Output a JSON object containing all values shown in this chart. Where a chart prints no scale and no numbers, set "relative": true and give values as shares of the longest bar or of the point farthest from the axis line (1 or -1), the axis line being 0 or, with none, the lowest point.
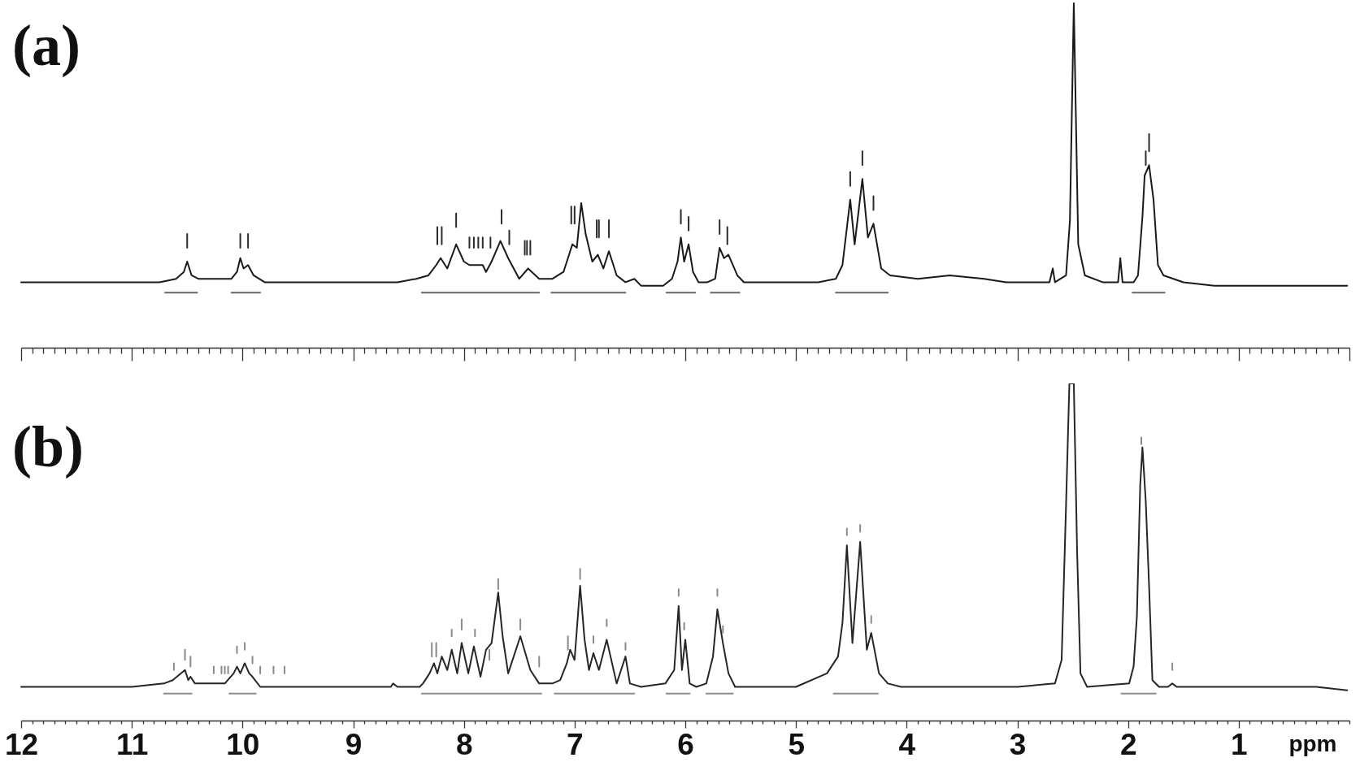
{
  "chart_data": [
    {
      "type": "line",
      "title": "(a)",
      "relative": true,
      "xlim": [
        12,
        0
      ],
      "tick_labels": false,
      "xticks": [
        12,
        {
          "value": 11.9,
          "label": null
        },
        {
          "value": 11.8,
          "label": null
        },
        {
          "value": 11.7,
          "label": null
        },
        {
          "value": 11.6,
          "label": null
        },
        {
          "value": 11.5,
          "label": null
        },
        {
          "value": 11.4,
          "label": null
        },
        {
          "value": 11.3,
          "label": null
        },
        {
          "value": 11.2,
          "label": null
        },
        {
          "value": 11.1,
          "label": null
        },
        11,
        {
          "value": 10.9,
          "label": null
        },
        {
          "value": 10.8,
          "label": null
        },
        {
          "value": 10.7,
          "label": null
        },
        {
          "value": 10.6,
          "label": null
        },
        {
          "value": 10.5,
          "label": null
        },
        {
          "value": 10.4,
          "label": null
        },
        {
          "value": 10.3,
          "label": null
        },
        {
          "value": 10.2,
          "label": null
        },
        {
          "value": 10.1,
          "label": null
        },
        10,
        {
          "value": 9.9,
          "label": null
        },
        {
          "value": 9.8,
          "label": null
        },
        {
          "value": 9.7,
          "label": null
        },
        {
          "value": 9.6,
          "label": null
        },
        {
          "value": 9.5,
          "label": null
        },
        {
          "value": 9.4,
          "label": null
        },
        {
          "value": 9.3,
          "label": null
        },
        {
          "value": 9.2,
          "label": null
        },
        {
          "value": 9.1,
          "label": null
        },
        9,
        {
          "value": 8.9,
          "label": null
        },
        {
          "value": 8.8,
          "label": null
        },
        {
          "value": 8.7,
          "label": null
        },
        {
          "value": 8.6,
          "label": null
        },
        {
          "value": 8.5,
          "label": null
        },
        {
          "value": 8.4,
          "label": null
        },
        {
          "value": 8.3,
          "label": null
        },
        {
          "value": 8.2,
          "label": null
        },
        {
          "value": 8.1,
          "label": null
        },
        8,
        {
          "value": 7.9,
          "label": null
        },
        {
          "value": 7.8,
          "label": null
        },
        {
          "value": 7.7,
          "label": null
        },
        {
          "value": 7.6,
          "label": null
        },
        {
          "value": 7.5,
          "label": null
        },
        {
          "value": 7.4,
          "label": null
        },
        {
          "value": 7.3,
          "label": null
        },
        {
          "value": 7.2,
          "label": null
        },
        {
          "value": 7.1,
          "label": null
        },
        7,
        {
          "value": 6.9,
          "label": null
        },
        {
          "value": 6.8,
          "label": null
        },
        {
          "value": 6.7,
          "label": null
        },
        {
          "value": 6.6,
          "label": null
        },
        {
          "value": 6.5,
          "label": null
        },
        {
          "value": 6.4,
          "label": null
        },
        {
          "value": 6.3,
          "label": null
        },
        {
          "value": 6.2,
          "label": null
        },
        {
          "value": 6.1,
          "label": null
        },
        6,
        {
          "value": 5.9,
          "label": null
        },
        {
          "value": 5.8,
          "label": null
        },
        {
          "value": 5.7,
          "label": null
        },
        {
          "value": 5.6,
          "label": null
        },
        {
          "value": 5.5,
          "label": null
        },
        {
          "value": 5.4,
          "label": null
        },
        {
          "value": 5.3,
          "label": null
        },
        {
          "value": 5.2,
          "label": null
        },
        {
          "value": 5.1,
          "label": null
        },
        5,
        {
          "value": 4.9,
          "label": null
        },
        {
          "value": 4.8,
          "label": null
        },
        {
          "value": 4.7,
          "label": null
        },
        {
          "value": 4.6,
          "label": null
        },
        {
          "value": 4.5,
          "label": null
        },
        {
          "value": 4.4,
          "label": null
        },
        {
          "value": 4.3,
          "label": null
        },
        {
          "value": 4.2,
          "label": null
        },
        {
          "value": 4.1,
          "label": null
        },
        4,
        {
          "value": 3.9,
          "label": null
        },
        {
          "value": 3.8,
          "label": null
        },
        {
          "value": 3.7,
          "label": null
        },
        {
          "value": 3.6,
          "label": null
        },
        {
          "value": 3.5,
          "label": null
        },
        {
          "value": 3.4,
          "label": null
        },
        {
          "value": 3.3,
          "label": null
        },
        {
          "value": 3.2,
          "label": null
        },
        {
          "value": 3.1,
          "label": null
        },
        3,
        {
          "value": 2.9,
          "label": null
        },
        {
          "value": 2.8,
          "label": null
        },
        {
          "value": 2.7,
          "label": null
        },
        {
          "value": 2.6,
          "label": null
        },
        {
          "value": 2.5,
          "label": null
        },
        {
          "value": 2.4,
          "label": null
        },
        {
          "value": 2.3,
          "label": null
        },
        {
          "value": 2.2,
          "label": null
        },
        {
          "value": 2.1,
          "label": null
        },
        2,
        {
          "value": 1.9,
          "label": null
        },
        {
          "value": 1.8,
          "label": null
        },
        {
          "value": 1.7,
          "label": null
        },
        {
          "value": 1.6,
          "label": null
        },
        {
          "value": 1.5,
          "label": null
        },
        {
          "value": 1.4,
          "label": null
        },
        {
          "value": 1.3,
          "label": null
        },
        {
          "value": 1.2,
          "label": null
        },
        {
          "value": 1.1,
          "label": null
        },
        1,
        {
          "value": 0.9,
          "label": null
        },
        {
          "value": 0.8,
          "label": null
        },
        {
          "value": 0.7,
          "label": null
        },
        {
          "value": 0.6,
          "label": null
        },
        {
          "value": 0.5,
          "label": null
        },
        {
          "value": 0.4,
          "label": null
        },
        {
          "value": 0.3,
          "label": null
        },
        {
          "value": 0.2,
          "label": null
        },
        {
          "value": 0.1,
          "label": null
        },
        0
      ],
      "series": [
        {
          "color": "#1a1a1a",
          "x": [
            12,
            11,
            10.75,
            10.6,
            10.53,
            10.5,
            10.46,
            10.4,
            10.1,
            10.05,
            10.02,
            9.99,
            9.95,
            9.9,
            9.8,
            9,
            8.6,
            8.43,
            8.32,
            8.25,
            8.21,
            8.15,
            8.07,
            8,
            7.95,
            7.88,
            7.83,
            7.8,
            7.75,
            7.67,
            7.6,
            7.5,
            7.42,
            7.32,
            7.2,
            7.1,
            7.02,
            6.98,
            6.94,
            6.9,
            6.84,
            6.79,
            6.74,
            6.69,
            6.62,
            6.54,
            6.46,
            6.4,
            6.2,
            6.12,
            6.07,
            6.04,
            6.01,
            5.97,
            5.93,
            5.88,
            5.8,
            5.73,
            5.69,
            5.65,
            5.61,
            5.53,
            5.47,
            4.8,
            4.64,
            4.58,
            4.51,
            4.47,
            4.4,
            4.35,
            4.3,
            4.23,
            4.15,
            3.9,
            3.61,
            3.3,
            3.1,
            2.71,
            2.68,
            2.66,
            2.56,
            2.525,
            2.49,
            2.45,
            2.39,
            2.23,
            2.09,
            2.07,
            2.05,
            1.95,
            1.91,
            1.87,
            1.85,
            1.81,
            1.77,
            1.73,
            1.68,
            1.5,
            1.22,
            0.6,
            0.02
          ],
          "values": [
            0.19,
            0.19,
            0.19,
            0.2,
            0.22,
            0.25,
            0.21,
            0.2,
            0.2,
            0.22,
            0.26,
            0.23,
            0.24,
            0.21,
            0.19,
            0.19,
            0.19,
            0.2,
            0.21,
            0.24,
            0.26,
            0.23,
            0.3,
            0.25,
            0.24,
            0.24,
            0.24,
            0.22,
            0.25,
            0.31,
            0.26,
            0.2,
            0.23,
            0.2,
            0.2,
            0.22,
            0.3,
            0.29,
            0.42,
            0.33,
            0.25,
            0.27,
            0.23,
            0.28,
            0.21,
            0.19,
            0.2,
            0.18,
            0.18,
            0.2,
            0.25,
            0.32,
            0.25,
            0.3,
            0.22,
            0.19,
            0.19,
            0.2,
            0.29,
            0.26,
            0.27,
            0.21,
            0.19,
            0.19,
            0.2,
            0.24,
            0.43,
            0.3,
            0.49,
            0.32,
            0.36,
            0.23,
            0.21,
            0.2,
            0.21,
            0.2,
            0.19,
            0.19,
            0.23,
            0.19,
            0.21,
            0.37,
            1,
            0.3,
            0.21,
            0.19,
            0.19,
            0.26,
            0.19,
            0.19,
            0.21,
            0.38,
            0.5,
            0.53,
            0.43,
            0.24,
            0.21,
            0.19,
            0.18,
            0.18,
            0.18
          ]
        },
        {
          "color": "#666666",
          "x": [
            10.7,
            10.41,
            null,
            10.1,
            9.84,
            null,
            8.38,
            7.32,
            null,
            7.21,
            6.54,
            null,
            6.17,
            5.91,
            null,
            5.77,
            5.51,
            null,
            4.64,
            4.17,
            null,
            1.96,
            1.67
          ],
          "values": [
            0.16,
            0.16,
            null,
            0.16,
            0.16,
            null,
            0.16,
            0.16,
            null,
            0.16,
            0.16,
            null,
            0.16,
            0.16,
            null,
            0.16,
            0.16,
            null,
            0.16,
            0.16,
            null,
            0.16,
            0.16
          ]
        },
        {
          "color": "#2b2b2b",
          "x": [
            10.5,
            10.5,
            null,
            10.02,
            10.02,
            null,
            9.95,
            9.95,
            null,
            8.24,
            8.24,
            null,
            8.2,
            8.2,
            null,
            8.07,
            8.07,
            null,
            7.95,
            7.95,
            null,
            7.91,
            7.91,
            null,
            7.87,
            7.87,
            null,
            7.83,
            7.83,
            null,
            7.76,
            7.76,
            null,
            7.66,
            7.66,
            null,
            7.59,
            7.59,
            null,
            7.45,
            7.45,
            null,
            7.43,
            7.43,
            null,
            7.4,
            7.4,
            null,
            7.03,
            7.03,
            null,
            7,
            7,
            null,
            6.8,
            6.8,
            null,
            6.78,
            6.78,
            null,
            6.69,
            6.69,
            null,
            6.04,
            6.04,
            null,
            5.97,
            5.97,
            null,
            5.69,
            5.69,
            null,
            5.62,
            5.62,
            null,
            4.51,
            4.51,
            null,
            4.4,
            4.4,
            null,
            4.3,
            4.3,
            null,
            1.84,
            1.84,
            null,
            1.81,
            1.81
          ],
          "values": [
            0.29,
            0.33,
            null,
            0.29,
            0.33,
            null,
            0.29,
            0.33,
            null,
            0.3,
            0.35,
            null,
            0.3,
            0.35,
            null,
            0.35,
            0.39,
            null,
            0.29,
            0.32,
            null,
            0.29,
            0.32,
            null,
            0.29,
            0.32,
            null,
            0.29,
            0.32,
            null,
            0.29,
            0.32,
            null,
            0.36,
            0.4,
            null,
            0.3,
            0.34,
            null,
            0.27,
            0.31,
            null,
            0.27,
            0.31,
            null,
            0.27,
            0.31,
            null,
            0.36,
            0.41,
            null,
            0.36,
            0.41,
            null,
            0.32,
            0.37,
            null,
            0.32,
            0.37,
            null,
            0.32,
            0.37,
            null,
            0.36,
            0.4,
            null,
            0.34,
            0.38,
            null,
            0.33,
            0.37,
            null,
            0.3,
            0.35,
            null,
            0.47,
            0.51,
            null,
            0.53,
            0.57,
            null,
            0.4,
            0.44,
            null,
            0.53,
            0.57,
            null,
            0.57,
            0.62
          ]
        }
      ]
    },
    {
      "type": "line",
      "title": "(b)",
      "relative": true,
      "xlim": [
        12,
        0
      ],
      "xlabel": "ppm",
      "xticks": [
        12,
        {
          "value": 11.9,
          "label": null
        },
        {
          "value": 11.8,
          "label": null
        },
        {
          "value": 11.7,
          "label": null
        },
        {
          "value": 11.6,
          "label": null
        },
        {
          "value": 11.5,
          "label": null
        },
        {
          "value": 11.4,
          "label": null
        },
        {
          "value": 11.3,
          "label": null
        },
        {
          "value": 11.2,
          "label": null
        },
        {
          "value": 11.1,
          "label": null
        },
        11,
        {
          "value": 10.9,
          "label": null
        },
        {
          "value": 10.8,
          "label": null
        },
        {
          "value": 10.7,
          "label": null
        },
        {
          "value": 10.6,
          "label": null
        },
        {
          "value": 10.5,
          "label": null
        },
        {
          "value": 10.4,
          "label": null
        },
        {
          "value": 10.3,
          "label": null
        },
        {
          "value": 10.2,
          "label": null
        },
        {
          "value": 10.1,
          "label": null
        },
        10,
        {
          "value": 9.9,
          "label": null
        },
        {
          "value": 9.8,
          "label": null
        },
        {
          "value": 9.7,
          "label": null
        },
        {
          "value": 9.6,
          "label": null
        },
        {
          "value": 9.5,
          "label": null
        },
        {
          "value": 9.4,
          "label": null
        },
        {
          "value": 9.3,
          "label": null
        },
        {
          "value": 9.2,
          "label": null
        },
        {
          "value": 9.1,
          "label": null
        },
        9,
        {
          "value": 8.9,
          "label": null
        },
        {
          "value": 8.8,
          "label": null
        },
        {
          "value": 8.7,
          "label": null
        },
        {
          "value": 8.6,
          "label": null
        },
        {
          "value": 8.5,
          "label": null
        },
        {
          "value": 8.4,
          "label": null
        },
        {
          "value": 8.3,
          "label": null
        },
        {
          "value": 8.2,
          "label": null
        },
        {
          "value": 8.1,
          "label": null
        },
        8,
        {
          "value": 7.9,
          "label": null
        },
        {
          "value": 7.8,
          "label": null
        },
        {
          "value": 7.7,
          "label": null
        },
        {
          "value": 7.6,
          "label": null
        },
        {
          "value": 7.5,
          "label": null
        },
        {
          "value": 7.4,
          "label": null
        },
        {
          "value": 7.3,
          "label": null
        },
        {
          "value": 7.2,
          "label": null
        },
        {
          "value": 7.1,
          "label": null
        },
        7,
        {
          "value": 6.9,
          "label": null
        },
        {
          "value": 6.8,
          "label": null
        },
        {
          "value": 6.7,
          "label": null
        },
        {
          "value": 6.6,
          "label": null
        },
        {
          "value": 6.5,
          "label": null
        },
        {
          "value": 6.4,
          "label": null
        },
        {
          "value": 6.3,
          "label": null
        },
        {
          "value": 6.2,
          "label": null
        },
        {
          "value": 6.1,
          "label": null
        },
        6,
        {
          "value": 5.9,
          "label": null
        },
        {
          "value": 5.8,
          "label": null
        },
        {
          "value": 5.7,
          "label": null
        },
        {
          "value": 5.6,
          "label": null
        },
        {
          "value": 5.5,
          "label": null
        },
        {
          "value": 5.4,
          "label": null
        },
        {
          "value": 5.3,
          "label": null
        },
        {
          "value": 5.2,
          "label": null
        },
        {
          "value": 5.1,
          "label": null
        },
        5,
        {
          "value": 4.9,
          "label": null
        },
        {
          "value": 4.8,
          "label": null
        },
        {
          "value": 4.7,
          "label": null
        },
        {
          "value": 4.6,
          "label": null
        },
        {
          "value": 4.5,
          "label": null
        },
        {
          "value": 4.4,
          "label": null
        },
        {
          "value": 4.3,
          "label": null
        },
        {
          "value": 4.2,
          "label": null
        },
        {
          "value": 4.1,
          "label": null
        },
        4,
        {
          "value": 3.9,
          "label": null
        },
        {
          "value": 3.8,
          "label": null
        },
        {
          "value": 3.7,
          "label": null
        },
        {
          "value": 3.6,
          "label": null
        },
        {
          "value": 3.5,
          "label": null
        },
        {
          "value": 3.4,
          "label": null
        },
        {
          "value": 3.3,
          "label": null
        },
        {
          "value": 3.2,
          "label": null
        },
        {
          "value": 3.1,
          "label": null
        },
        3,
        {
          "value": 2.9,
          "label": null
        },
        {
          "value": 2.8,
          "label": null
        },
        {
          "value": 2.7,
          "label": null
        },
        {
          "value": 2.6,
          "label": null
        },
        {
          "value": 2.5,
          "label": null
        },
        {
          "value": 2.4,
          "label": null
        },
        {
          "value": 2.3,
          "label": null
        },
        {
          "value": 2.2,
          "label": null
        },
        {
          "value": 2.1,
          "label": null
        },
        2,
        {
          "value": 1.9,
          "label": null
        },
        {
          "value": 1.8,
          "label": null
        },
        {
          "value": 1.7,
          "label": null
        },
        {
          "value": 1.6,
          "label": null
        },
        {
          "value": 1.5,
          "label": null
        },
        {
          "value": 1.4,
          "label": null
        },
        {
          "value": 1.3,
          "label": null
        },
        {
          "value": 1.2,
          "label": null
        },
        {
          "value": 1.1,
          "label": null
        },
        1,
        {
          "value": 0.9,
          "label": null
        },
        {
          "value": 0.8,
          "label": null
        },
        {
          "value": 0.7,
          "label": null
        },
        {
          "value": 0.6,
          "label": null
        },
        {
          "value": 0.5,
          "label": null
        },
        {
          "value": 0.4,
          "label": null
        },
        {
          "value": 0.3,
          "label": null
        },
        {
          "value": 0.2,
          "label": null
        },
        {
          "value": 0.1,
          "label": null
        },
        {
          "value": 0,
          "label": null
        }
      ],
      "series": [
        {
          "color": "#262626",
          "x": [
            12,
            11,
            10.71,
            10.63,
            10.52,
            10.49,
            10.47,
            10.43,
            10.2,
            10.16,
            10.08,
            10.05,
            10.02,
            9.98,
            9.94,
            9.91,
            9.84,
            9,
            8.66,
            8.64,
            8.6,
            8.4,
            8.37,
            8.31,
            8.27,
            8.24,
            8.2,
            8.15,
            8.11,
            8.06,
            8.02,
            7.96,
            7.91,
            7.85,
            7.8,
            7.75,
            7.69,
            7.65,
            7.6,
            7.49,
            7.4,
            7.32,
            7.2,
            7.13,
            7.07,
            7.04,
            7,
            6.95,
            6.91,
            6.87,
            6.83,
            6.78,
            6.71,
            6.62,
            6.54,
            6.5,
            6.4,
            6.18,
            6.1,
            6.06,
            6.03,
            6,
            5.96,
            5.9,
            5.81,
            5.75,
            5.71,
            5.66,
            5.61,
            5.55,
            5,
            4.72,
            4.62,
            4.58,
            4.54,
            4.49,
            4.42,
            4.36,
            4.32,
            4.25,
            4.17,
            4.05,
            3,
            2.66,
            2.6,
            2.56,
            2.53,
            2.49,
            2.46,
            2.43,
            2.37,
            1.99,
            1.95,
            1.92,
            1.89,
            1.87,
            1.84,
            1.81,
            1.78,
            1.72,
            1.64,
            1.6,
            1.56,
            0.3,
            0.02
          ],
          "values": [
            0.1,
            0.1,
            0.11,
            0.12,
            0.15,
            0.12,
            0.13,
            0.11,
            0.11,
            0.11,
            0.14,
            0.16,
            0.14,
            0.17,
            0.14,
            0.13,
            0.1,
            0.1,
            0.1,
            0.11,
            0.1,
            0.1,
            0.11,
            0.14,
            0.17,
            0.14,
            0.19,
            0.15,
            0.21,
            0.14,
            0.23,
            0.14,
            0.22,
            0.13,
            0.21,
            0.23,
            0.38,
            0.25,
            0.14,
            0.25,
            0.15,
            0.11,
            0.11,
            0.12,
            0.17,
            0.21,
            0.18,
            0.4,
            0.24,
            0.15,
            0.2,
            0.15,
            0.24,
            0.11,
            0.19,
            0.11,
            0.1,
            0.11,
            0.15,
            0.34,
            0.15,
            0.24,
            0.11,
            0.1,
            0.11,
            0.19,
            0.33,
            0.23,
            0.14,
            0.1,
            0.1,
            0.14,
            0.19,
            0.29,
            0.52,
            0.23,
            0.53,
            0.21,
            0.26,
            0.14,
            0.11,
            0.1,
            0.1,
            0.11,
            0.18,
            0.64,
            1,
            1,
            0.5,
            0.14,
            0.1,
            0.11,
            0.16,
            0.31,
            0.7,
            0.81,
            0.65,
            0.4,
            0.12,
            0.1,
            0.1,
            0.11,
            0.1,
            0.1,
            0.09
          ]
        },
        {
          "color": "#8a8a8a",
          "x": [
            10.71,
            10.46,
            null,
            10.12,
            9.88,
            null,
            8.38,
            7.3,
            null,
            7.18,
            6.46,
            null,
            6.17,
            5.96,
            null,
            5.81,
            5.57,
            null,
            4.66,
            4.26,
            null,
            2.06,
            1.75
          ],
          "values": [
            0.08,
            0.08,
            null,
            0.08,
            0.08,
            null,
            0.08,
            0.08,
            null,
            0.08,
            0.08,
            null,
            0.08,
            0.08,
            null,
            0.08,
            0.08,
            null,
            0.08,
            0.08,
            null,
            0.08,
            0.08
          ]
        },
        {
          "color": "#8a8a8a",
          "x": [
            10.62,
            10.62,
            null,
            10.52,
            10.52,
            null,
            10.47,
            10.47,
            null,
            10.26,
            10.26,
            null,
            10.19,
            10.19,
            null,
            10.16,
            10.16,
            null,
            10.13,
            10.13,
            null,
            10.05,
            10.05,
            null,
            9.98,
            9.98,
            null,
            9.91,
            9.91,
            null,
            9.84,
            9.84,
            null,
            9.72,
            9.72,
            null,
            9.62,
            9.62,
            null,
            8.29,
            8.29,
            null,
            8.25,
            8.25,
            null,
            8.11,
            8.11,
            null,
            8.02,
            8.02,
            null,
            7.9,
            7.9,
            null,
            7.77,
            7.77,
            null,
            7.69,
            7.69,
            null,
            7.49,
            7.49,
            null,
            7.32,
            7.32,
            null,
            7.06,
            7.06,
            null,
            6.95,
            6.95,
            null,
            6.83,
            6.83,
            null,
            6.71,
            6.71,
            null,
            6.54,
            6.54,
            null,
            6.06,
            6.06,
            null,
            6.01,
            6.01,
            null,
            5.71,
            5.71,
            null,
            5.66,
            5.66,
            null,
            4.54,
            4.54,
            null,
            4.42,
            4.42,
            null,
            4.32,
            4.32,
            null,
            1.88,
            1.88,
            null,
            1.6,
            1.6
          ],
          "values": [
            0.15,
            0.17,
            null,
            0.18,
            0.21,
            null,
            0.16,
            0.19,
            null,
            0.14,
            0.16,
            null,
            0.14,
            0.16,
            null,
            0.14,
            0.16,
            null,
            0.14,
            0.16,
            null,
            0.2,
            0.22,
            null,
            0.21,
            0.23,
            null,
            0.17,
            0.19,
            null,
            0.14,
            0.16,
            null,
            0.14,
            0.16,
            null,
            0.14,
            0.16,
            null,
            0.19,
            0.23,
            null,
            0.19,
            0.23,
            null,
            0.25,
            0.27,
            null,
            0.27,
            0.3,
            null,
            0.25,
            0.27,
            null,
            0.18,
            0.21,
            null,
            0.39,
            0.42,
            null,
            0.27,
            0.3,
            null,
            0.16,
            0.19,
            null,
            0.21,
            0.25,
            null,
            0.42,
            0.45,
            null,
            0.23,
            0.25,
            null,
            0.28,
            0.3,
            null,
            0.21,
            0.23,
            null,
            0.37,
            0.39,
            null,
            0.27,
            0.29,
            null,
            0.37,
            0.39,
            null,
            0.26,
            0.28,
            null,
            0.55,
            0.57,
            null,
            0.56,
            0.58,
            null,
            0.29,
            0.31,
            null,
            0.82,
            0.84,
            null,
            0.15,
            0.17
          ]
        }
      ]
    }
  ]
}
